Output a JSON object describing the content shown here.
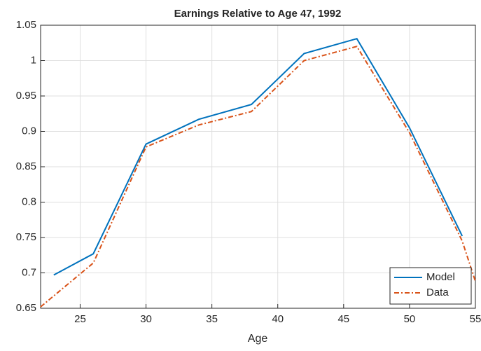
{
  "chart_data": {
    "type": "line",
    "title": "Earnings Relative to Age 47, 1992",
    "x_label": "Age",
    "series": [
      {
        "name": "Model",
        "color": "#0072bd",
        "dash": "solid",
        "x": [
          23,
          26,
          30,
          34,
          38,
          42,
          46,
          50,
          54
        ],
        "values": [
          0.697,
          0.727,
          0.882,
          0.917,
          0.938,
          1.01,
          1.031,
          0.905,
          0.752
        ]
      },
      {
        "name": "Data",
        "color": "#d95319",
        "dash": "dashdot",
        "x": [
          22,
          26,
          30,
          34,
          38,
          42,
          46,
          50,
          54,
          55
        ],
        "values": [
          0.652,
          0.714,
          0.878,
          0.909,
          0.928,
          1.0,
          1.02,
          0.898,
          0.745,
          0.688
        ]
      }
    ],
    "xlim": [
      22,
      55
    ],
    "xticks": [
      25,
      30,
      35,
      40,
      45,
      50,
      55
    ],
    "ylim": [
      0.65,
      1.05
    ],
    "yticks": [
      0.65,
      0.7,
      0.75,
      0.8,
      0.85,
      0.9,
      0.95,
      1,
      1.05
    ],
    "grid": true,
    "legend": "lower right"
  }
}
